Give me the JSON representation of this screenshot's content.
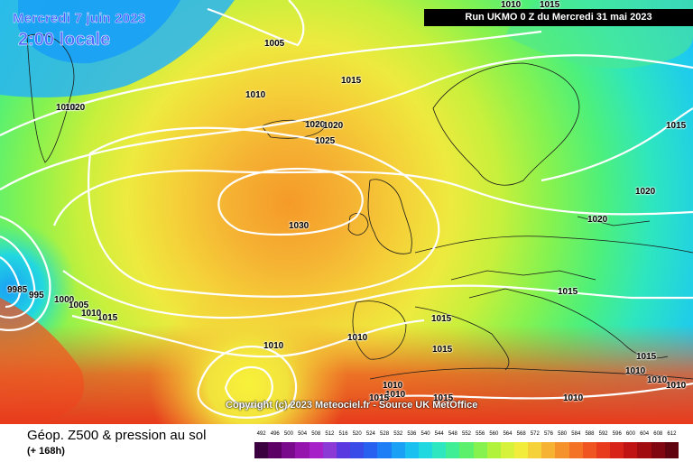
{
  "header": {
    "date": "Mercredi 7 juin 2023",
    "local_time": "2:00 locale",
    "run": "Run UKMO 0 Z du Mercredi 31 mai 2023"
  },
  "copyright": "Copyright (c) 2023 Meteociel.fr - Source UK MetOffice",
  "legend": {
    "title": "Géop. Z500 & pression au sol",
    "subtitle": "(+ 168h)",
    "values": [
      "492",
      "496",
      "500",
      "504",
      "508",
      "512",
      "516",
      "520",
      "524",
      "528",
      "532",
      "536",
      "540",
      "544",
      "548",
      "552",
      "556",
      "560",
      "564",
      "568",
      "572",
      "576",
      "580",
      "584",
      "588",
      "592",
      "596",
      "600",
      "604",
      "608",
      "612"
    ],
    "colors": [
      "#3a0040",
      "#5c0066",
      "#7a0a8c",
      "#9414ad",
      "#a621c7",
      "#8b3ad6",
      "#5a3ae0",
      "#3a4ce8",
      "#2860f0",
      "#1e7ef5",
      "#1aa0f5",
      "#19c0f0",
      "#22d8e0",
      "#2ee6bf",
      "#40ee96",
      "#5cf06c",
      "#86f24f",
      "#b0f23c",
      "#d6f23a",
      "#f2ec3c",
      "#f5d23a",
      "#f5b233",
      "#f5922c",
      "#f47226",
      "#f05420",
      "#e83a1c",
      "#d82418",
      "#c01414",
      "#a00c10",
      "#800610",
      "#600410"
    ]
  },
  "isobars": {
    "l1": "1005",
    "l2": "1010",
    "l3": "1015",
    "l4": "1015",
    "l5": "1010",
    "l6": "1020",
    "l7": "1020",
    "l8": "1025",
    "l9": "1010",
    "l10": "1020",
    "l11": "1015",
    "l12": "1020",
    "l13": "1030",
    "l14": "1020",
    "l15": "1015",
    "l16": "1015",
    "l17": "1015",
    "l18": "1010",
    "l19": "1010",
    "l20": "1015",
    "l21": "1010",
    "l22": "1010",
    "l23": "1010",
    "l24": "1015",
    "l25": "1010",
    "l26": "1010",
    "l27": "1010",
    "l28": "9985",
    "l29": "995",
    "l30": "1000",
    "l31": "1005",
    "l32": "1010",
    "l33": "1015",
    "l34": "1015"
  }
}
